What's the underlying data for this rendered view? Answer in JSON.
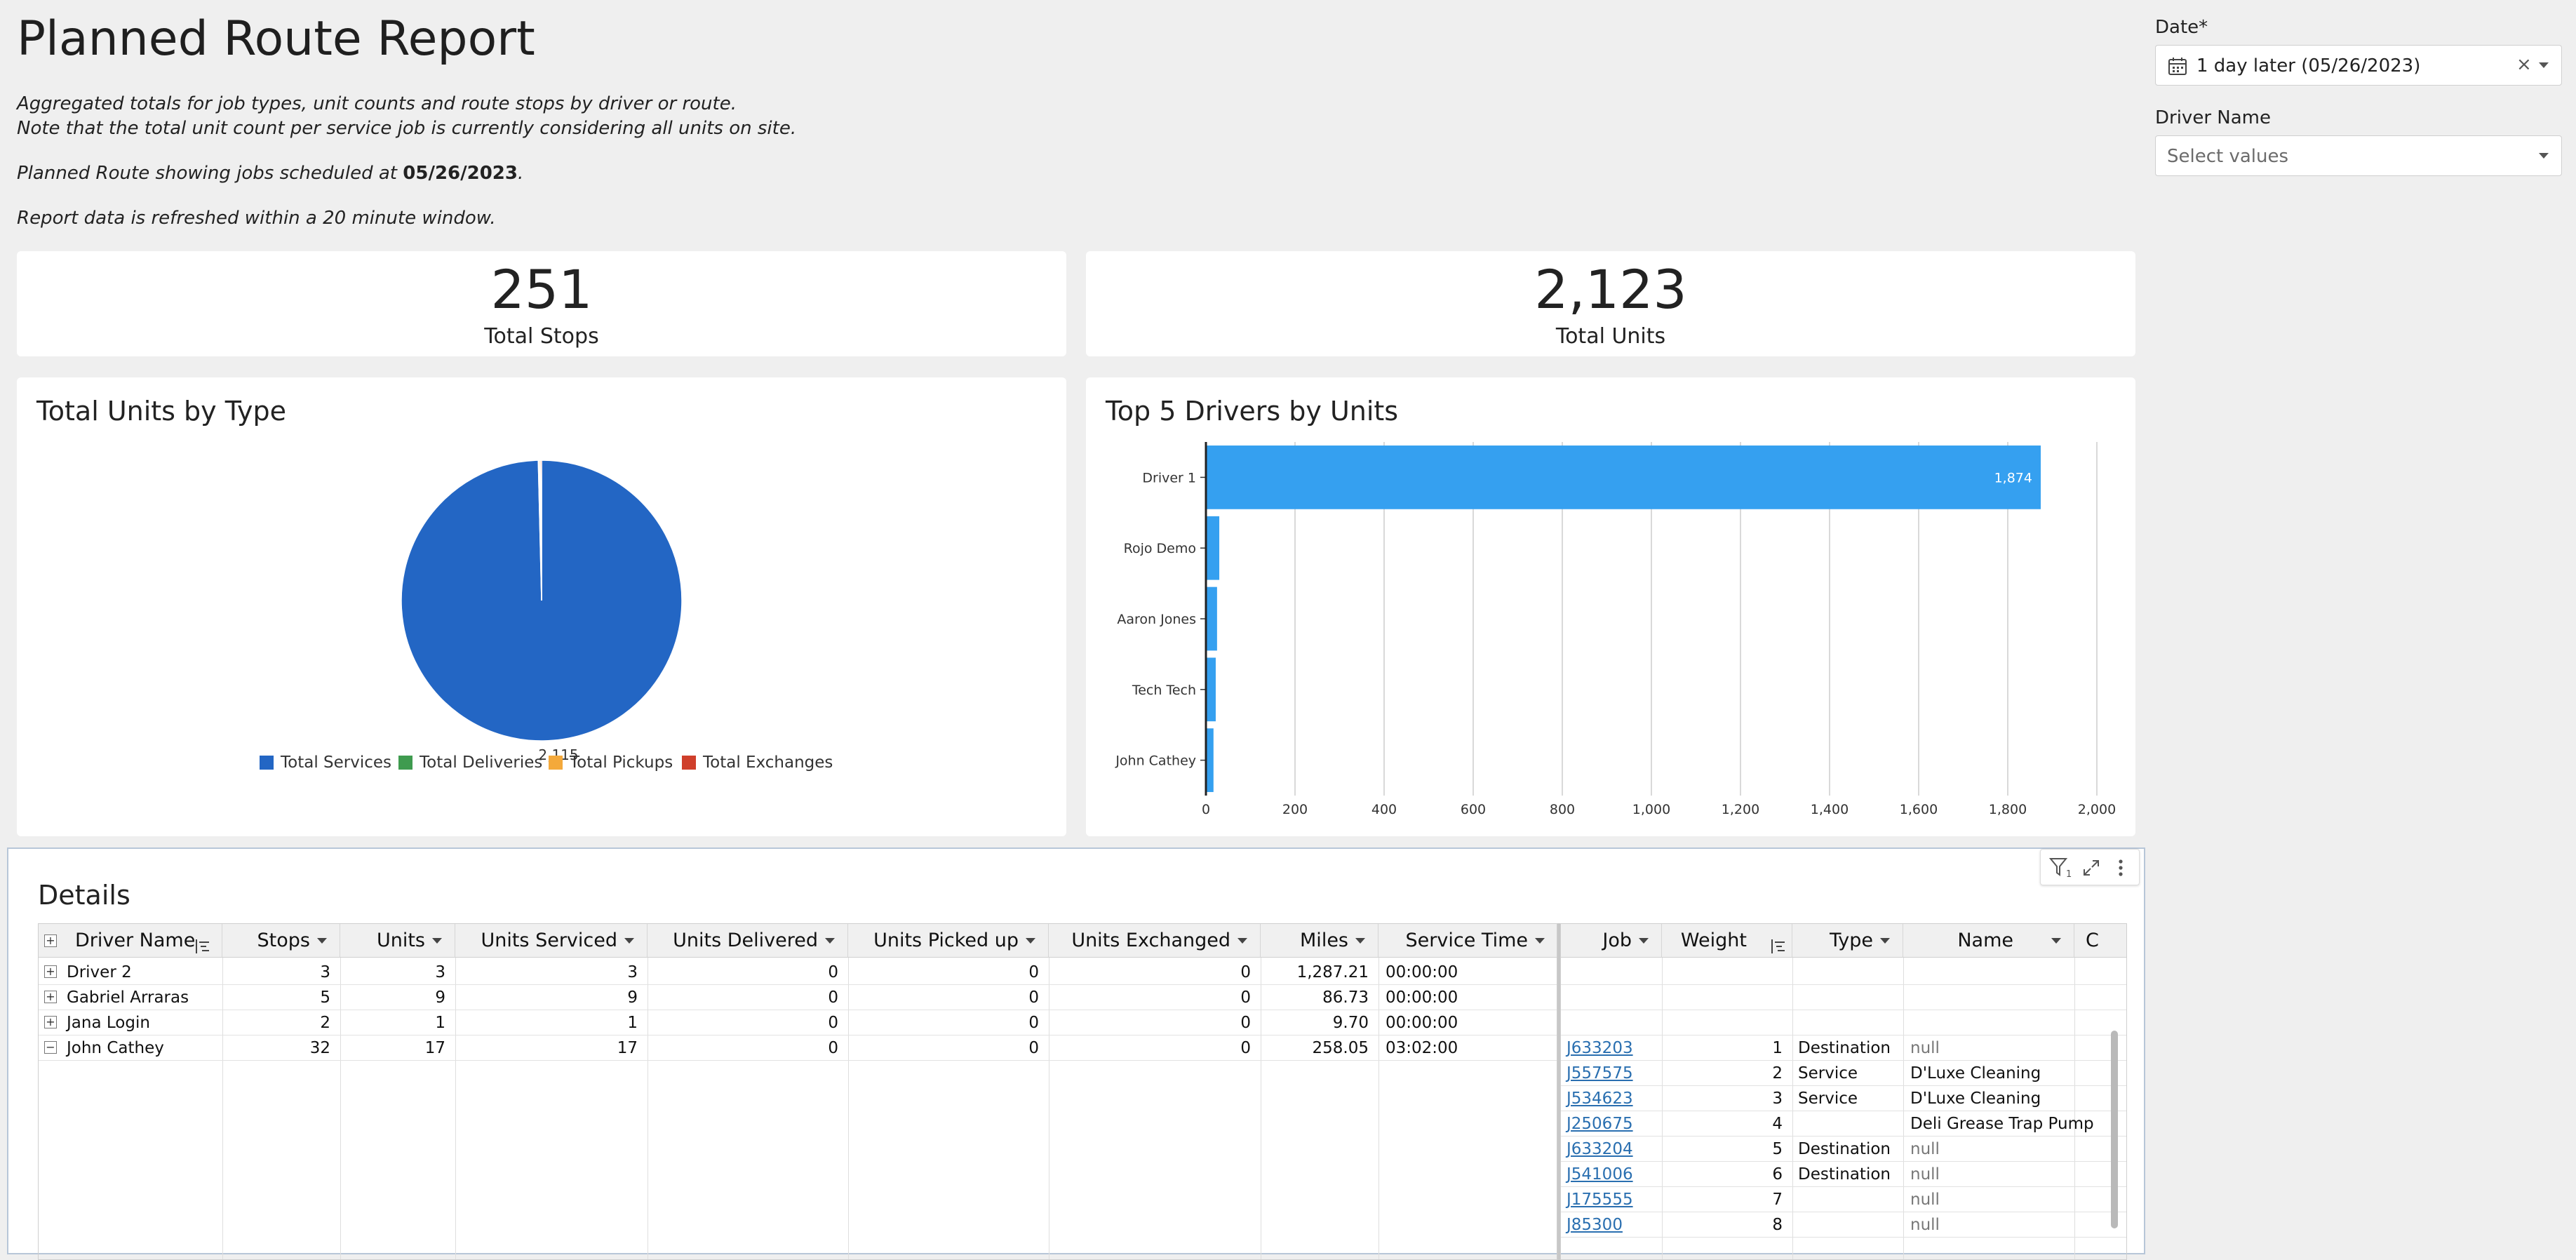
{
  "page": {
    "title": "Planned Route Report",
    "desc_line1": "Aggregated totals for job types, unit counts and route stops by driver or route.",
    "desc_line2": "Note that the total unit count per service job is currently considering all units on site.",
    "desc_line3_prefix": "Planned Route showing jobs scheduled at ",
    "desc_line3_date": "05/26/2023",
    "desc_line3_suffix": ".",
    "desc_line4": "Report data is refreshed within a 20 minute window."
  },
  "filters": {
    "date_label": "Date*",
    "date_value": "1 day later (05/26/2023)",
    "clear_glyph": "×",
    "driver_label": "Driver Name",
    "driver_placeholder": "Select values"
  },
  "kpis": {
    "stops_value": "251",
    "stops_label": "Total Stops",
    "units_value": "2,123",
    "units_label": "Total Units"
  },
  "pie": {
    "title": "Total Units by Type",
    "slice_label": "2,115",
    "legend": [
      "Total Services",
      "Total Deliveries",
      "Total Pickups",
      "Total Exchanges"
    ]
  },
  "bar": {
    "title": "Top 5 Drivers by Units",
    "value_label": "1,874",
    "ticks": [
      "0",
      "200",
      "400",
      "600",
      "800",
      "1,000",
      "1,200",
      "1,400",
      "1,600",
      "1,800",
      "2,000"
    ]
  },
  "chart_data": [
    {
      "type": "pie",
      "title": "Total Units by Type",
      "categories": [
        "Total Services",
        "Total Deliveries",
        "Total Pickups",
        "Total Exchanges"
      ],
      "values": [
        2115,
        2,
        3,
        3
      ],
      "colors": [
        "#2366c4",
        "#3f9b4f",
        "#f4a93b",
        "#cf3f2b"
      ],
      "legend": "bottom"
    },
    {
      "type": "bar",
      "orientation": "horizontal",
      "title": "Top 5 Drivers by Units",
      "categories": [
        "Driver 1",
        "Rojo Demo",
        "Aaron Jones",
        "Tech Tech",
        "John Cathey"
      ],
      "values": [
        1874,
        30,
        25,
        22,
        17
      ],
      "xlim": [
        0,
        2000
      ],
      "grid": true,
      "color": "#35a0f0"
    }
  ],
  "details": {
    "title": "Details",
    "headers": [
      "Driver Name",
      "Stops",
      "Units",
      "Units Serviced",
      "Units Delivered",
      "Units Picked up",
      "Units Exchanged",
      "Miles",
      "Service Time"
    ],
    "rows": [
      {
        "expander": "+",
        "cells": [
          "Driver 2",
          "3",
          "3",
          "3",
          "0",
          "0",
          "0",
          "1,287.21",
          "00:00:00"
        ]
      },
      {
        "expander": "+",
        "cells": [
          "Gabriel Arraras",
          "5",
          "9",
          "9",
          "0",
          "0",
          "0",
          "86.73",
          "00:00:00"
        ]
      },
      {
        "expander": "+",
        "cells": [
          "Jana Login",
          "2",
          "1",
          "1",
          "0",
          "0",
          "0",
          "9.70",
          "00:00:00"
        ]
      },
      {
        "expander": "−",
        "cells": [
          "John Cathey",
          "32",
          "17",
          "17",
          "0",
          "0",
          "0",
          "258.05",
          "03:02:00"
        ]
      }
    ],
    "sub_headers": [
      "Job",
      "Weight",
      "Type",
      "Name",
      "C"
    ],
    "sub_rows": [
      [
        "J633203",
        "1",
        "Destination",
        "null"
      ],
      [
        "J557575",
        "2",
        "Service",
        "D'Luxe Cleaning"
      ],
      [
        "J534623",
        "3",
        "Service",
        "D'Luxe Cleaning"
      ],
      [
        "J250675",
        "4",
        "",
        "Deli Grease Trap Pump"
      ],
      [
        "J633204",
        "5",
        "Destination",
        "null"
      ],
      [
        "J541006",
        "6",
        "Destination",
        "null"
      ],
      [
        "J175555",
        "7",
        "",
        "null"
      ],
      [
        "J85300",
        "8",
        "",
        "null"
      ]
    ],
    "toolbar_filter_count": "1"
  }
}
